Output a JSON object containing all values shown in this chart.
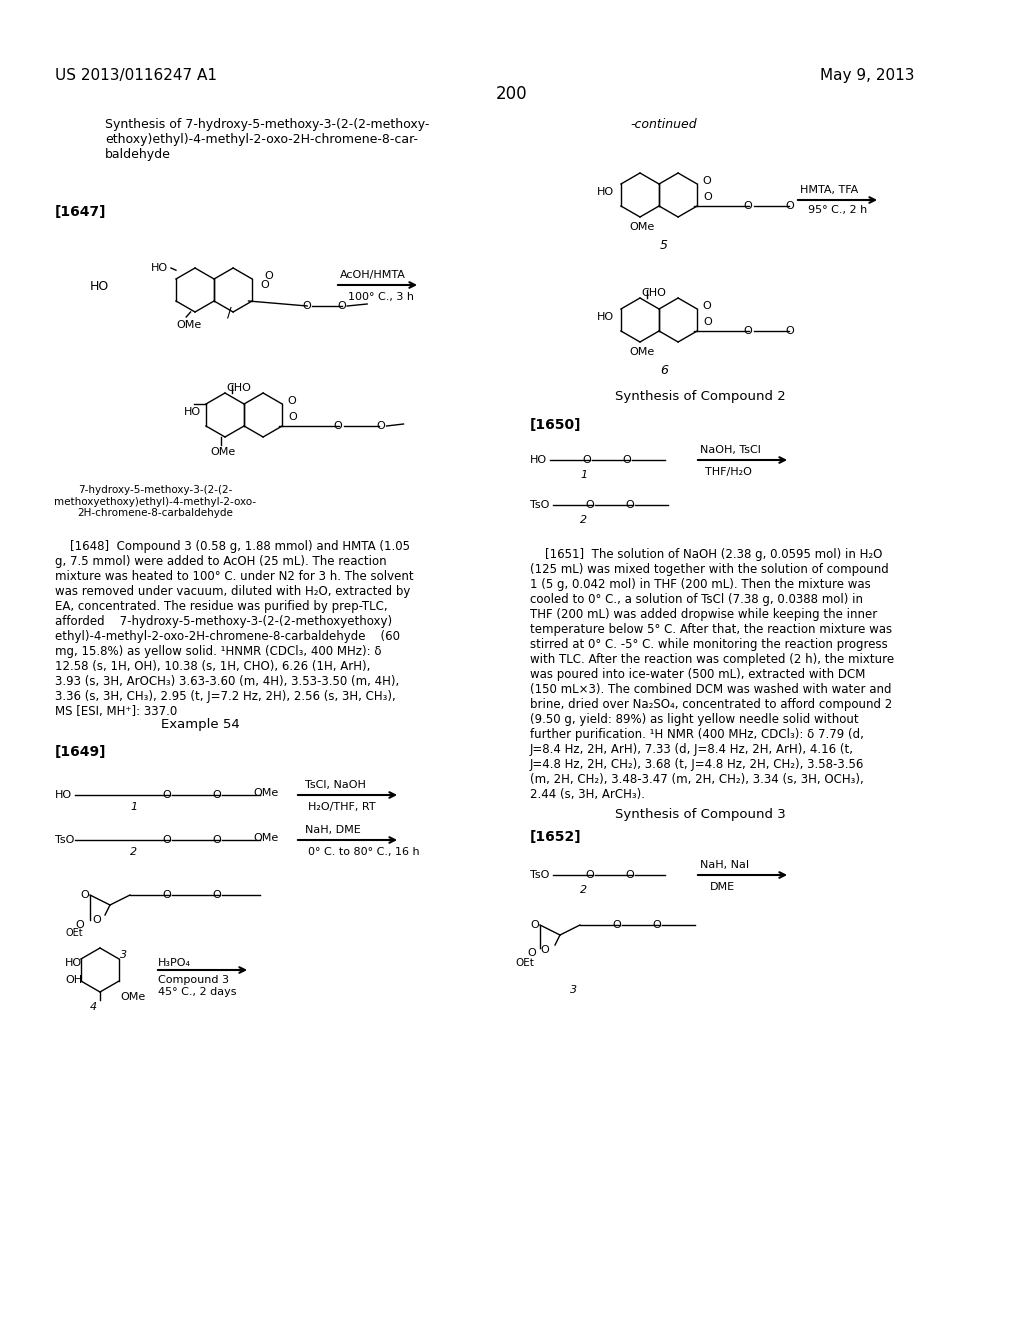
{
  "page_number": "200",
  "patent_number": "US 2013/0116247 A1",
  "patent_date": "May 9, 2013",
  "background_color": "#ffffff",
  "text_color": "#000000",
  "title_synthesis": "Synthesis of 7-hydroxy-5-methoxy-3-(2-(2-methoxy-\nethoxy)ethyl)-4-methyl-2-oxo-2H-chromene-8-car-\nbaldehyde",
  "paragraph_1647": "[1647]",
  "reaction1_reagent": "AcOH/HMTA",
  "reaction1_condition": "100° C., 3 h",
  "compound_label_5": "5",
  "reaction2_reagent": "HMTA, TFA",
  "reaction2_condition": "95° C., 2 h",
  "compound_label_6": "6",
  "compound_name_product": "7-hydroxy-5-methoxy-3-(2-(2-\nmethoxyethoxy)ethyl)-4-methyl-2-oxo-\n2H-chromene-8-carbaldehyde",
  "synthesis2_title": "Synthesis of Compound 2",
  "paragraph_1650": "[1650]",
  "paragraph_1651_title": "[1651]",
  "example54_title": "Example 54",
  "paragraph_1649": "[1649]",
  "reaction3_reagent1": "TsCl, NaOH",
  "reaction3_condition1": "H₂O/THF, RT",
  "reaction3_reagent2": "NaH, DME",
  "reaction3_condition2": "0° C. to 80° C., 16 h",
  "reaction3_reagent3": "H₃PO₄",
  "reaction3_condition3": "Compound 3\n45° C., 2 days",
  "synthesis3_title": "Synthesis of Compound 3",
  "paragraph_1652": "[1652]",
  "reaction4_reagent": "NaH, NaI",
  "reaction4_condition": "DME",
  "body_text_1648": "    [1648]  Compound 3 (0.58 g, 1.88 mmol) and HMTA (1.05\ng, 7.5 mmol) were added to AcOH (25 mL). The reaction\nmixture was heated to 100° C. under N2 for 3 h. The solvent\nwas removed under vacuum, diluted with H₂O, extracted by\nEA, concentrated. The residue was purified by prep-TLC,\nafforded    7-hydroxy-5-methoxy-3-(2-(2-methoxyethoxy)\nethyl)-4-methyl-2-oxo-2H-chromene-8-carbaldehyde    (60\nmg, 15.8%) as yellow solid. ¹HNMR (CDCl₃, 400 MHz): δ\n12.58 (s, 1H, OH), 10.38 (s, 1H, CHO), 6.26 (1H, ArH),\n3.93 (s, 3H, ArOCH₃) 3.63-3.60 (m, 4H), 3.53-3.50 (m, 4H),\n3.36 (s, 3H, CH₃), 2.95 (t, J=7.2 Hz, 2H), 2.56 (s, 3H, CH₃),\nMS [ESI, MH⁺]: 337.0",
  "body_text_1651": "    [1651]  The solution of NaOH (2.38 g, 0.0595 mol) in H₂O\n(125 mL) was mixed together with the solution of compound\n1 (5 g, 0.042 mol) in THF (200 mL). Then the mixture was\ncooled to 0° C., a solution of TsCl (7.38 g, 0.0388 mol) in\nTHF (200 mL) was added dropwise while keeping the inner\ntemperature below 5° C. After that, the reaction mixture was\nstirred at 0° C. -5° C. while monitoring the reaction progress\nwith TLC. After the reaction was completed (2 h), the mixture\nwas poured into ice-water (500 mL), extracted with DCM\n(150 mL×3). The combined DCM was washed with water and\nbrine, dried over Na₂SO₄, concentrated to afford compound 2\n(9.50 g, yield: 89%) as light yellow needle solid without\nfurther purification. ¹H NMR (400 MHz, CDCl₃): δ 7.79 (d,\nJ=8.4 Hz, 2H, ArH), 7.33 (d, J=8.4 Hz, 2H, ArH), 4.16 (t,\nJ=4.8 Hz, 2H, CH₂), 3.68 (t, J=4.8 Hz, 2H, CH₂), 3.58-3.56\n(m, 2H, CH₂), 3.48-3.47 (m, 2H, CH₂), 3.34 (s, 3H, OCH₃),\n2.44 (s, 3H, ArCH₃)."
}
